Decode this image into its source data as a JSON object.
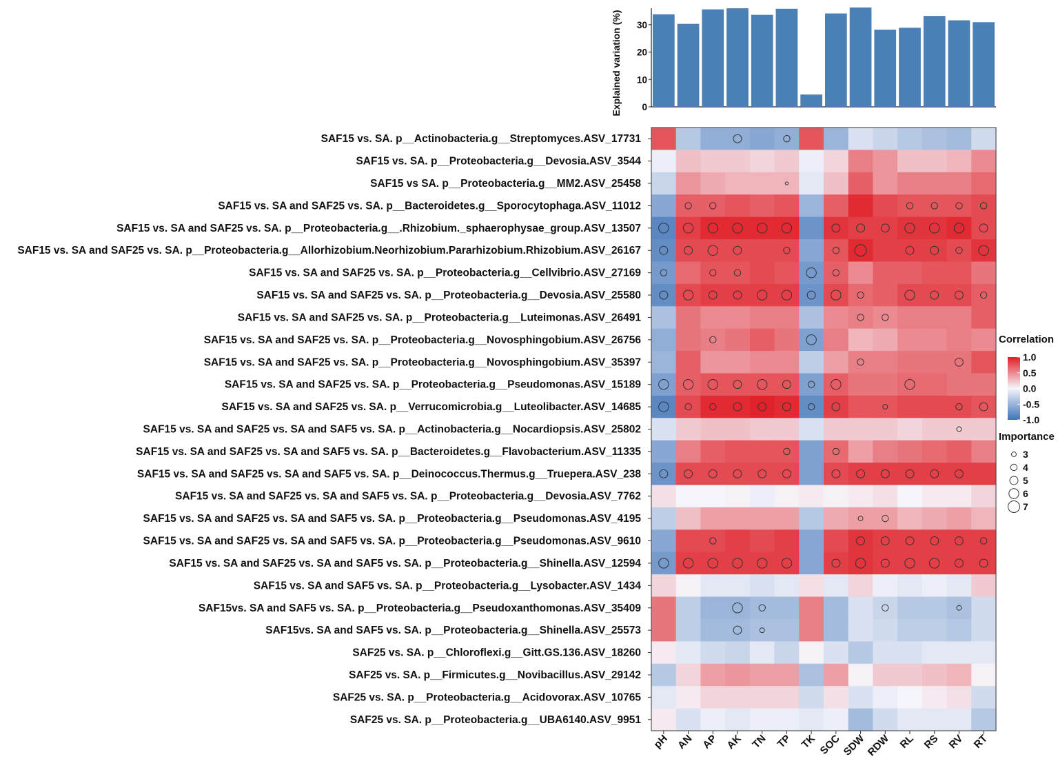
{
  "chart_data": [
    {
      "type": "bar",
      "ylabel": "Explained variation (%)",
      "ylim": [
        0,
        36
      ],
      "yticks": [
        0,
        10,
        20,
        30
      ],
      "categories": [
        "pH",
        "AN",
        "AP",
        "AK",
        "TN",
        "TP",
        "TK",
        "SOC",
        "SDW",
        "RDW",
        "RL",
        "RS",
        "RV",
        "RT"
      ],
      "values": [
        33.8,
        30.3,
        35.6,
        36.0,
        33.6,
        35.8,
        4.5,
        34.1,
        36.3,
        28.2,
        28.9,
        33.2,
        31.6,
        30.9
      ],
      "color": "#4a80b5"
    },
    {
      "type": "heatmap",
      "columns": [
        "pH",
        "AN",
        "AP",
        "AK",
        "TN",
        "TP",
        "TK",
        "SOC",
        "SDW",
        "RDW",
        "RL",
        "RS",
        "RV",
        "RT"
      ],
      "rows": [
        "SAF15 vs. SA. p__Actinobacteria.g__Streptomyces.ASV_17731",
        "SAF15 vs. SA.  p__Proteobacteria.g__Devosia.ASV_3544",
        "SAF15 vs SA. p__Proteobacteria.g__MM2.ASV_25458",
        "SAF15 vs. SA and SAF25 vs. SA. p__Bacteroidetes.g__Sporocytophaga.ASV_11012",
        "SAF15 vs. SA and SAF25 vs. SA. p__Proteobacteria.g__.Rhizobium._sphaerophysae_group.ASV_13507",
        "SAF15 vs. SA and SAF25 vs. SA. p__Proteobacteria.g__Allorhizobium.Neorhizobium.Pararhizobium.Rhizobium.ASV_26167",
        "SAF15 vs. SA and SAF25 vs. SA. p__Proteobacteria.g__Cellvibrio.ASV_27169",
        "SAF15 vs. SA and SAF25 vs. SA. p__Proteobacteria.g__Devosia.ASV_25580",
        "SAF15 vs. SA and SAF25 vs. SA. p__Proteobacteria.g__Luteimonas.ASV_26491",
        "SAF15 vs. SA and SAF25 vs. SA. p__Proteobacteria.g__Novosphingobium.ASV_26756",
        "SAF15 vs. SA and SAF25 vs. SA. p__Proteobacteria.g__Novosphingobium.ASV_35397",
        "SAF15 vs. SA and SAF25 vs. SA. p__Proteobacteria.g__Pseudomonas.ASV_15189",
        "SAF15 vs. SA and SAF25 vs. SA. p__Verrucomicrobia.g__Luteolibacter.ASV_14685",
        "SAF15 vs. SA and SAF25 vs. SA and SAF5 vs. SA. p__Actinobacteria.g__Nocardiopsis.ASV_25802",
        "SAF15 vs. SA and SAF25 vs. SA and SAF5 vs. SA. p__Bacteroidetes.g__Flavobacterium.ASV_11335",
        "SAF15 vs. SA and SAF25 vs. SA and SAF5 vs. SA. p__Deinococcus.Thermus.g__Truepera.ASV_238",
        "SAF15 vs. SA and SAF25 vs. SA and SAF5 vs. SA. p__Proteobacteria.g__Devosia.ASV_7762",
        "SAF15 vs. SA and SAF25 vs. SA and SAF5 vs. SA. p__Proteobacteria.g__Pseudomonas.ASV_4195",
        "SAF15 vs. SA and SAF25 vs. SA and SAF5 vs. SA. p__Proteobacteria.g__Pseudomonas.ASV_9610",
        "SAF15 vs. SA and SAF25 vs. SA and SAF5 vs. SA. p__Proteobacteria.g__Shinella.ASV_12594",
        "SAF15 vs. SA and SAF5 vs. SA. p__Proteobacteria.g__Lysobacter.ASV_1434",
        "SAF15vs. SA and SAF5 vs. SA. p__Proteobacteria.g__Pseudoxanthomonas.ASV_35409",
        "SAF15vs. SA and SAF5 vs. SA. p__Proteobacteria.g__Shinella.ASV_25573",
        "SAF25 vs. SA. p__Chloroflexi.g__Gitt.GS.136.ASV_18260",
        "SAF25 vs. SA. p__Firmicutes.g__Novibacillus.ASV_29142",
        "SAF25 vs. SA. p__Proteobacteria.g__Acidovorax.ASV_10765",
        "SAF25 vs. SA. p__Proteobacteria.g__UBA6140.ASV_9951"
      ],
      "correlation": [
        [
          0.75,
          -0.35,
          -0.55,
          -0.55,
          -0.6,
          -0.55,
          0.75,
          -0.5,
          -0.15,
          -0.25,
          -0.35,
          -0.4,
          -0.45,
          -0.2
        ],
        [
          -0.05,
          0.25,
          0.2,
          0.2,
          0.15,
          0.2,
          -0.05,
          0.15,
          0.55,
          0.45,
          0.25,
          0.25,
          0.3,
          0.5
        ],
        [
          -0.25,
          0.45,
          0.35,
          0.3,
          0.3,
          0.3,
          -0.1,
          0.25,
          0.7,
          0.45,
          0.55,
          0.55,
          0.55,
          0.65
        ],
        [
          -0.6,
          0.7,
          0.7,
          0.75,
          0.7,
          0.75,
          -0.5,
          0.7,
          0.95,
          0.8,
          0.75,
          0.75,
          0.75,
          0.8
        ],
        [
          -0.85,
          0.85,
          0.95,
          0.95,
          0.95,
          0.95,
          -0.75,
          0.9,
          0.85,
          0.85,
          0.9,
          0.9,
          0.95,
          0.8
        ],
        [
          -0.8,
          0.8,
          0.8,
          0.8,
          0.8,
          0.8,
          -0.6,
          0.75,
          0.95,
          0.85,
          0.85,
          0.85,
          0.8,
          0.9
        ],
        [
          -0.7,
          0.65,
          0.75,
          0.75,
          0.8,
          0.75,
          -0.7,
          0.7,
          0.5,
          0.7,
          0.7,
          0.75,
          0.75,
          0.6
        ],
        [
          -0.8,
          0.8,
          0.85,
          0.85,
          0.85,
          0.85,
          -0.75,
          0.8,
          0.65,
          0.7,
          0.8,
          0.8,
          0.8,
          0.7
        ],
        [
          -0.4,
          0.6,
          0.5,
          0.5,
          0.55,
          0.55,
          -0.4,
          0.5,
          0.55,
          0.5,
          0.55,
          0.55,
          0.55,
          0.7
        ],
        [
          -0.55,
          0.6,
          0.55,
          0.6,
          0.7,
          0.6,
          -0.65,
          0.55,
          0.3,
          0.35,
          0.5,
          0.5,
          0.55,
          0.5
        ],
        [
          -0.5,
          0.7,
          0.45,
          0.45,
          0.5,
          0.5,
          -0.3,
          0.4,
          0.55,
          0.55,
          0.6,
          0.6,
          0.6,
          0.75
        ],
        [
          -0.65,
          0.7,
          0.75,
          0.75,
          0.75,
          0.75,
          -0.65,
          0.7,
          0.6,
          0.6,
          0.65,
          0.65,
          0.6,
          0.6
        ],
        [
          -0.85,
          0.8,
          0.95,
          0.95,
          0.98,
          0.95,
          -0.8,
          0.85,
          0.75,
          0.75,
          0.8,
          0.8,
          0.8,
          0.75
        ],
        [
          -0.15,
          0.2,
          0.25,
          0.25,
          0.2,
          0.2,
          -0.15,
          0.2,
          0.2,
          0.2,
          0.15,
          0.2,
          0.2,
          0.2
        ],
        [
          -0.6,
          0.55,
          0.7,
          0.75,
          0.75,
          0.75,
          -0.65,
          0.65,
          0.4,
          0.55,
          0.6,
          0.65,
          0.7,
          0.55
        ],
        [
          -0.75,
          0.8,
          0.8,
          0.8,
          0.8,
          0.8,
          -0.65,
          0.8,
          0.85,
          0.85,
          0.85,
          0.85,
          0.85,
          0.85
        ],
        [
          0.1,
          0.0,
          0.0,
          0.02,
          -0.05,
          0.02,
          0.05,
          0.02,
          0.05,
          0.1,
          0.0,
          0.05,
          0.05,
          0.15
        ],
        [
          -0.3,
          0.25,
          0.4,
          0.4,
          0.4,
          0.4,
          -0.35,
          0.35,
          0.4,
          0.4,
          0.3,
          0.35,
          0.4,
          0.3
        ],
        [
          -0.6,
          0.8,
          0.8,
          0.85,
          0.8,
          0.85,
          -0.6,
          0.8,
          0.9,
          0.85,
          0.85,
          0.85,
          0.85,
          0.85
        ],
        [
          -0.7,
          0.85,
          0.85,
          0.85,
          0.85,
          0.85,
          -0.6,
          0.85,
          0.9,
          0.85,
          0.85,
          0.85,
          0.85,
          0.85
        ],
        [
          0.15,
          0.02,
          -0.1,
          -0.1,
          -0.15,
          -0.1,
          0.1,
          -0.1,
          0.15,
          -0.05,
          -0.1,
          -0.05,
          -0.1,
          0.2
        ],
        [
          0.6,
          -0.3,
          -0.5,
          -0.5,
          -0.45,
          -0.45,
          0.55,
          -0.45,
          -0.15,
          -0.25,
          -0.35,
          -0.35,
          -0.4,
          -0.2
        ],
        [
          0.6,
          -0.3,
          -0.45,
          -0.45,
          -0.4,
          -0.4,
          0.55,
          -0.45,
          -0.15,
          -0.2,
          -0.3,
          -0.3,
          -0.35,
          -0.2
        ],
        [
          0.05,
          -0.1,
          -0.2,
          -0.25,
          -0.1,
          -0.25,
          0.02,
          -0.15,
          -0.35,
          -0.15,
          -0.15,
          -0.1,
          -0.1,
          -0.1
        ],
        [
          -0.35,
          0.15,
          0.4,
          0.45,
          0.4,
          0.4,
          -0.4,
          0.4,
          0.02,
          0.2,
          0.2,
          0.25,
          0.3,
          0.02
        ],
        [
          -0.1,
          0.05,
          0.15,
          0.15,
          0.15,
          0.15,
          -0.2,
          0.1,
          -0.15,
          -0.05,
          0.0,
          0.05,
          0.1,
          -0.2
        ],
        [
          0.05,
          -0.15,
          -0.05,
          -0.1,
          -0.05,
          -0.05,
          -0.1,
          -0.05,
          -0.45,
          -0.2,
          -0.1,
          -0.1,
          -0.1,
          -0.35
        ]
      ],
      "importance": [
        [
          0,
          0,
          0,
          5,
          0,
          4,
          0,
          0,
          0,
          0,
          0,
          0,
          0,
          0
        ],
        [
          0,
          0,
          0,
          0,
          0,
          0,
          0,
          0,
          0,
          0,
          0,
          0,
          0,
          0
        ],
        [
          0,
          0,
          0,
          0,
          0,
          2,
          0,
          0,
          0,
          0,
          0,
          0,
          0,
          0
        ],
        [
          0,
          4,
          4,
          0,
          0,
          0,
          0,
          0,
          0,
          0,
          4,
          4,
          4,
          4
        ],
        [
          6,
          6,
          6,
          6,
          6,
          6,
          0,
          5,
          5,
          5,
          6,
          6,
          6,
          5
        ],
        [
          5,
          5,
          6,
          5,
          0,
          4,
          0,
          4,
          7,
          0,
          5,
          5,
          4,
          6
        ],
        [
          4,
          0,
          4,
          4,
          0,
          0,
          6,
          4,
          0,
          0,
          0,
          0,
          0,
          0
        ],
        [
          5,
          6,
          5,
          5,
          6,
          6,
          5,
          6,
          4,
          0,
          6,
          5,
          5,
          4
        ],
        [
          0,
          0,
          0,
          0,
          0,
          0,
          0,
          0,
          4,
          4,
          0,
          0,
          0,
          0
        ],
        [
          0,
          0,
          4,
          0,
          0,
          0,
          6,
          0,
          0,
          0,
          0,
          0,
          0,
          0
        ],
        [
          0,
          0,
          0,
          0,
          0,
          0,
          0,
          0,
          4,
          0,
          0,
          0,
          5,
          0
        ],
        [
          6,
          6,
          6,
          5,
          6,
          5,
          4,
          6,
          0,
          0,
          6,
          0,
          0,
          0
        ],
        [
          6,
          4,
          4,
          5,
          5,
          5,
          4,
          5,
          0,
          3,
          0,
          0,
          4,
          5
        ],
        [
          0,
          0,
          0,
          0,
          0,
          0,
          0,
          0,
          0,
          0,
          0,
          0,
          3,
          0
        ],
        [
          0,
          0,
          0,
          0,
          0,
          4,
          0,
          4,
          0,
          0,
          0,
          0,
          0,
          0
        ],
        [
          5,
          5,
          5,
          5,
          5,
          5,
          0,
          5,
          5,
          5,
          5,
          5,
          5,
          0
        ],
        [
          0,
          0,
          0,
          0,
          0,
          0,
          0,
          0,
          0,
          0,
          0,
          0,
          0,
          0
        ],
        [
          0,
          0,
          0,
          0,
          0,
          0,
          0,
          0,
          3,
          4,
          0,
          0,
          0,
          0
        ],
        [
          0,
          0,
          4,
          0,
          0,
          0,
          0,
          0,
          5,
          5,
          5,
          5,
          5,
          4
        ],
        [
          6,
          6,
          6,
          6,
          6,
          6,
          0,
          5,
          6,
          5,
          6,
          6,
          5,
          5
        ],
        [
          0,
          0,
          0,
          0,
          0,
          0,
          0,
          0,
          0,
          0,
          0,
          0,
          0,
          0
        ],
        [
          0,
          0,
          0,
          6,
          4,
          0,
          0,
          0,
          0,
          4,
          0,
          0,
          3,
          0
        ],
        [
          0,
          0,
          0,
          5,
          3,
          0,
          0,
          0,
          0,
          0,
          0,
          0,
          0,
          0
        ],
        [
          0,
          0,
          0,
          0,
          0,
          0,
          0,
          0,
          0,
          0,
          0,
          0,
          0,
          0
        ],
        [
          0,
          0,
          0,
          0,
          0,
          0,
          0,
          0,
          0,
          0,
          0,
          0,
          0,
          0
        ],
        [
          0,
          0,
          0,
          0,
          0,
          0,
          0,
          0,
          0,
          0,
          0,
          0,
          0,
          0
        ],
        [
          0,
          0,
          0,
          0,
          0,
          0,
          0,
          0,
          0,
          0,
          0,
          0,
          0,
          0
        ]
      ],
      "colorscale": {
        "low": "#3f73b8",
        "mid": "#f5f5fb",
        "high": "#e01f27"
      },
      "legend_correlation": {
        "title": "Correlation",
        "ticks": [
          "1.0",
          "0.5",
          "0.0",
          "-0.5",
          "-1.0"
        ]
      },
      "legend_importance": {
        "title": "Importance",
        "levels": [
          3,
          4,
          5,
          6,
          7
        ]
      }
    }
  ]
}
